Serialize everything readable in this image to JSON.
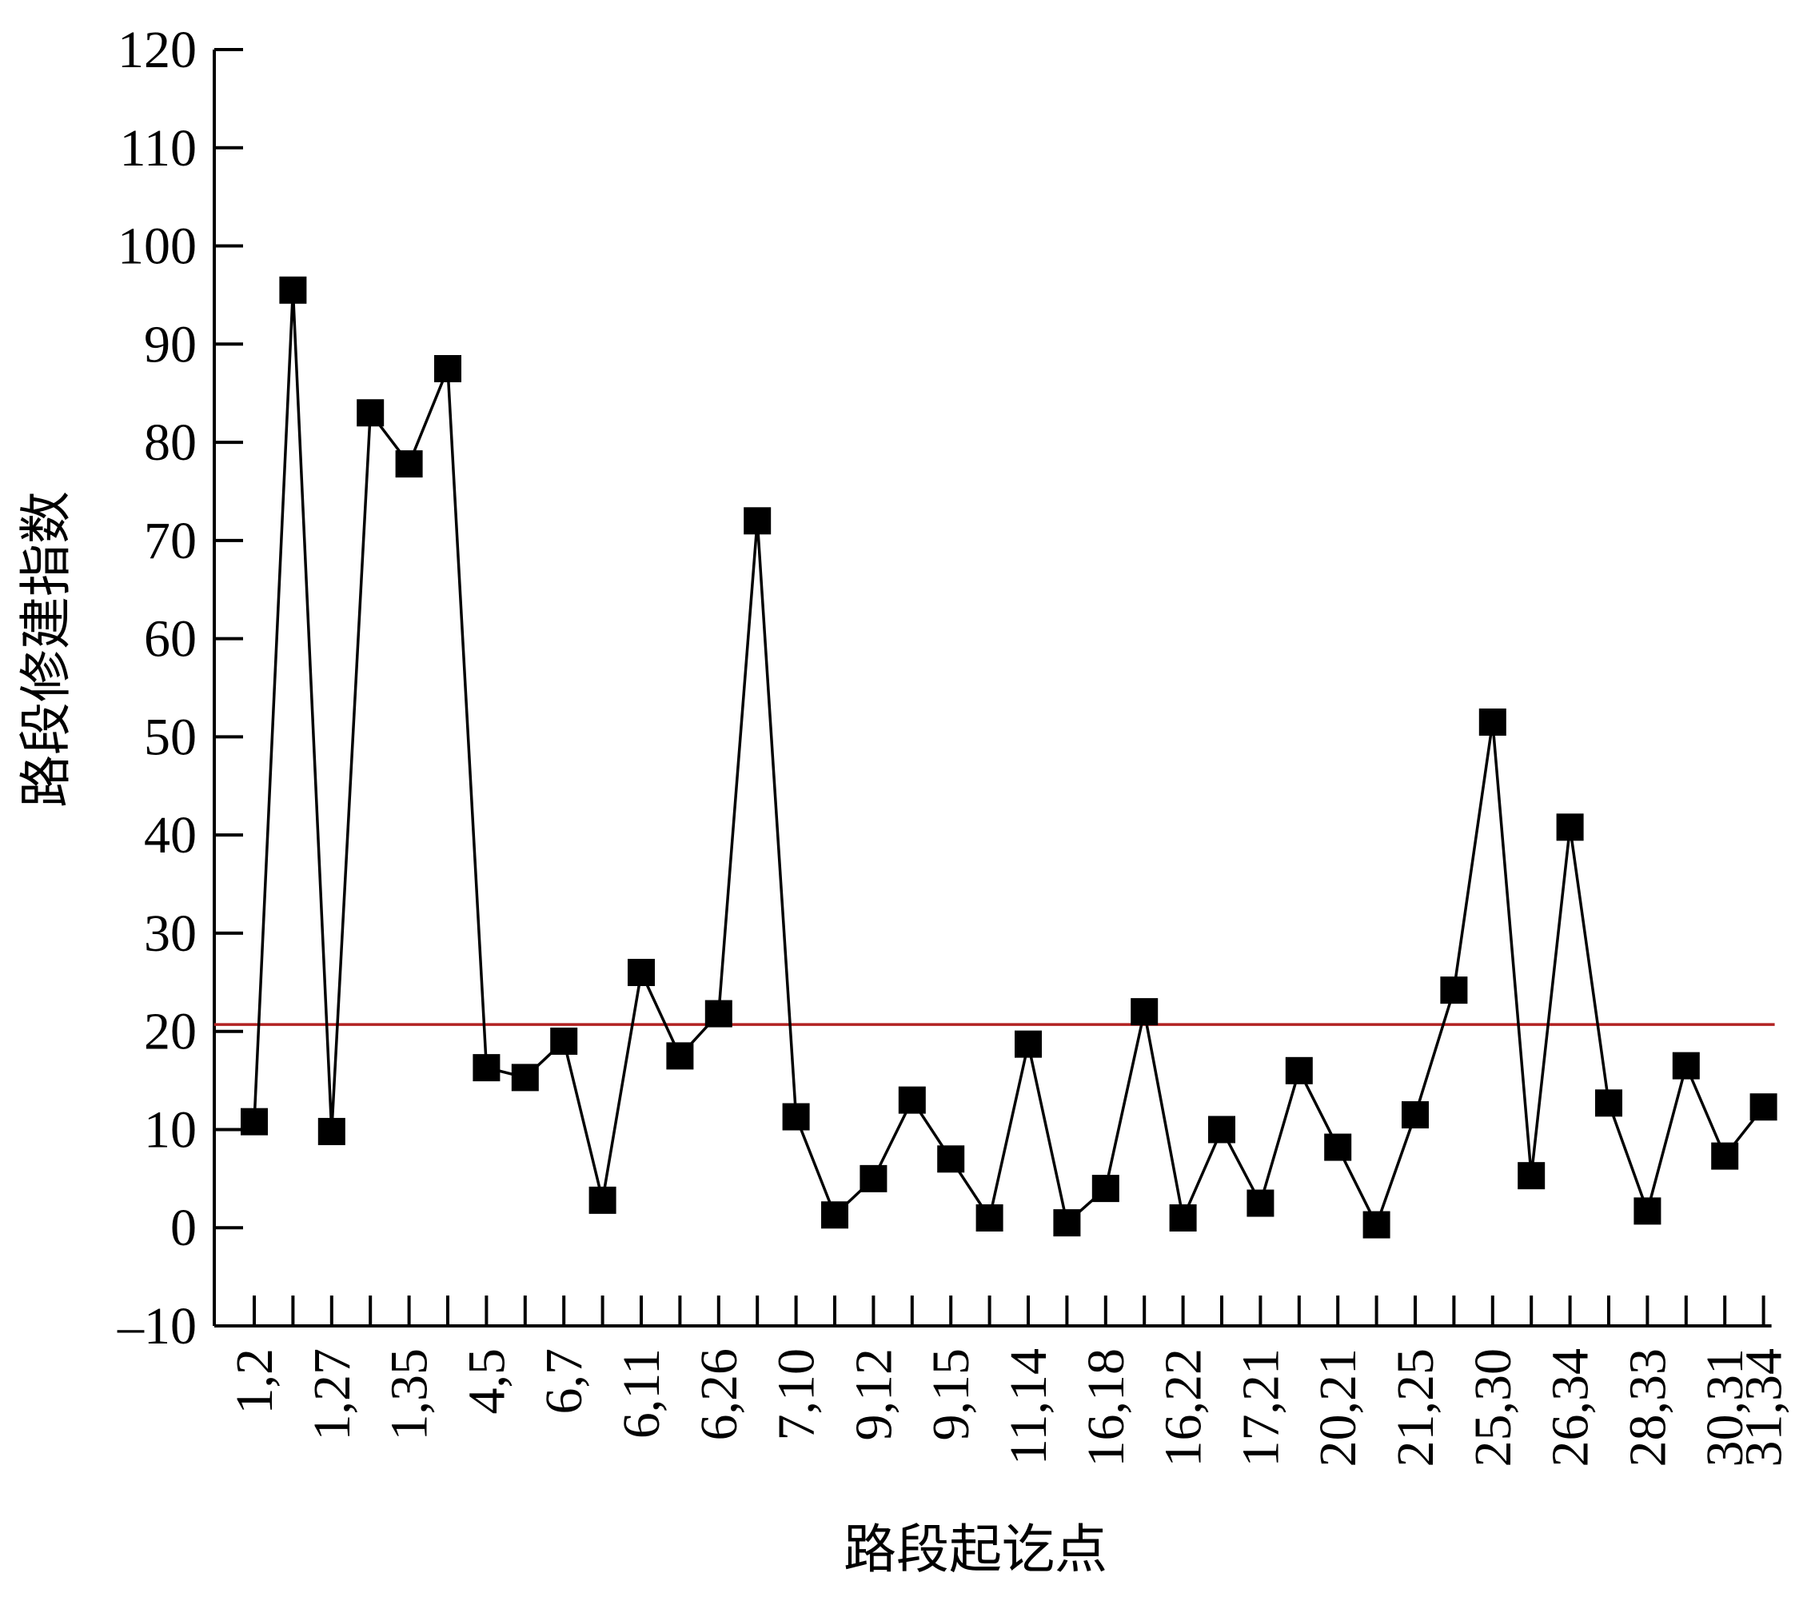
{
  "chart_data": {
    "type": "line",
    "title": "",
    "xlabel": "路段起讫点",
    "ylabel": "路段修建指数",
    "ylim": [
      -10,
      120
    ],
    "yticks": [
      -10,
      0,
      10,
      20,
      30,
      40,
      50,
      60,
      70,
      80,
      90,
      100,
      110,
      120
    ],
    "grid": false,
    "legend": "none",
    "x_tick_labels": [
      "1,2",
      "1,27",
      "1,35",
      "4,5",
      "6,7",
      "6,11",
      "6,26",
      "7,10",
      "9,12",
      "9,15",
      "11,14",
      "16,18",
      "16,22",
      "17,21",
      "20,21",
      "21,25",
      "25,30",
      "26,34",
      "28,33",
      "30,31",
      "31,34"
    ],
    "series": [
      {
        "marker": "square",
        "color": "#000000",
        "values": [
          10.8,
          95.5,
          9.8,
          83.0,
          77.8,
          87.5,
          16.3,
          15.3,
          19.0,
          2.8,
          26.0,
          17.5,
          21.8,
          72.0,
          11.3,
          1.3,
          5.0,
          13.0,
          7.0,
          1.0,
          18.7,
          0.5,
          4.0,
          22.0,
          1.0,
          10.0,
          2.5,
          16.0,
          8.2,
          0.3,
          11.5,
          24.2,
          51.5,
          5.3,
          40.8,
          12.7,
          1.7,
          16.5,
          7.3,
          12.3
        ]
      }
    ],
    "reference_line": {
      "y": 20.7,
      "color": "#b22222"
    }
  }
}
